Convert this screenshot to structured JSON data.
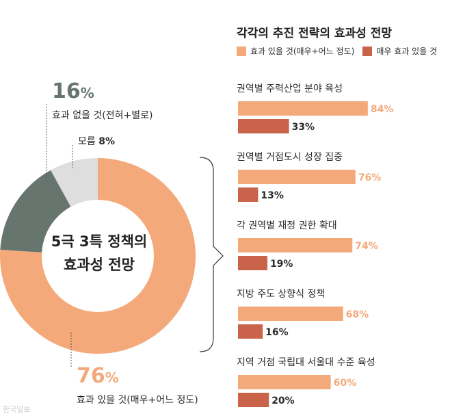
{
  "colors": {
    "effective": "#F4A97A",
    "very_effective": "#C9644A",
    "not_effective": "#66766F",
    "unknown": "#DEDEDE",
    "text_dark": "#2B2B2B",
    "bar_label_light": "#F4A97A"
  },
  "chart_data": [
    {
      "type": "pie",
      "title": "5극 3특 정책의 효과성 전망",
      "title_lines": [
        "5극 3특 정책의",
        "효과성 전망"
      ],
      "slices": [
        {
          "label": "효과 있을 것(매우+어느 정도)",
          "value": 76,
          "value_text": "76"
        },
        {
          "label": "효과 없을 것(전혀+별로)",
          "value": 16,
          "value_text": "16"
        },
        {
          "label": "모름",
          "value": 8,
          "value_text": "8%"
        }
      ]
    },
    {
      "type": "bar",
      "title": "각각의 추진 전략의 효과성 전망",
      "legend": [
        "효과 있을 것(매우+어느 정도)",
        "매우 효과 있을 것"
      ],
      "legend_position": "top",
      "categories": [
        "권역별 주력산업 분야 육성",
        "권역별 거점도시 성장 집중",
        "각 권역별 재정 권한 확대",
        "지방 주도 상향식 정책",
        "지역 거점 국립대 서울대 수준 육성"
      ],
      "series": [
        {
          "name": "효과 있을 것(매우+어느 정도)",
          "values": [
            84,
            76,
            74,
            68,
            60
          ]
        },
        {
          "name": "매우 효과 있을 것",
          "values": [
            33,
            13,
            19,
            16,
            20
          ]
        }
      ],
      "ylim": [
        0,
        100
      ]
    }
  ],
  "labels": {
    "percent_sign": "%",
    "credit": "한국일보"
  }
}
